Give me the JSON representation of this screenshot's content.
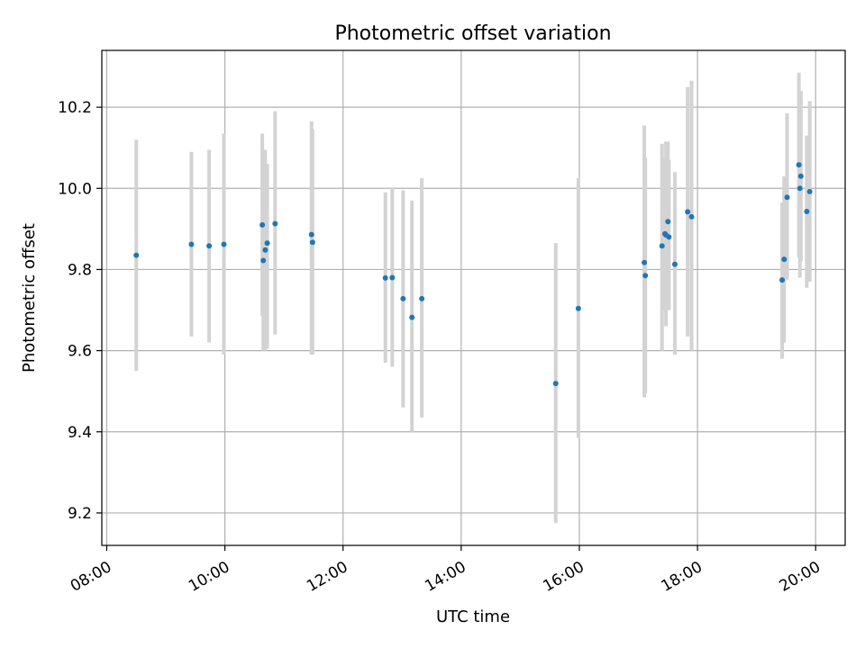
{
  "chart_data": {
    "type": "scatter",
    "title": "Photometric offset variation",
    "xlabel": "UTC time",
    "ylabel": "Photometric offset",
    "xlim": [
      "07:55",
      "20:30"
    ],
    "ylim": [
      9.12,
      10.34
    ],
    "x_ticks": [
      "08:00",
      "10:00",
      "12:00",
      "14:00",
      "16:00",
      "18:00",
      "20:00"
    ],
    "y_ticks": [
      9.2,
      9.4,
      9.6,
      9.8,
      10.0,
      10.2
    ],
    "grid": true,
    "legend": "none",
    "point_color": "#1f77b4",
    "errorbar_color": "#d3d3d3",
    "points": [
      {
        "x": "08:30",
        "y": 9.835,
        "low": 9.55,
        "high": 10.12
      },
      {
        "x": "09:26",
        "y": 9.862,
        "low": 9.635,
        "high": 10.09
      },
      {
        "x": "09:44",
        "y": 9.858,
        "low": 9.62,
        "high": 10.095
      },
      {
        "x": "09:59",
        "y": 9.862,
        "low": 9.59,
        "high": 10.135
      },
      {
        "x": "10:38",
        "y": 9.91,
        "low": 9.685,
        "high": 10.135
      },
      {
        "x": "10:39",
        "y": 9.822,
        "low": 9.6,
        "high": 10.045
      },
      {
        "x": "10:41",
        "y": 9.848,
        "low": 9.6,
        "high": 10.095
      },
      {
        "x": "10:43",
        "y": 9.865,
        "low": 9.605,
        "high": 10.06
      },
      {
        "x": "10:51",
        "y": 9.913,
        "low": 9.64,
        "high": 10.19
      },
      {
        "x": "11:28",
        "y": 9.886,
        "low": 9.59,
        "high": 10.165
      },
      {
        "x": "11:29",
        "y": 9.867,
        "low": 9.59,
        "high": 10.145
      },
      {
        "x": "12:43",
        "y": 9.779,
        "low": 9.57,
        "high": 9.99
      },
      {
        "x": "12:50",
        "y": 9.78,
        "low": 9.56,
        "high": 10.0
      },
      {
        "x": "13:01",
        "y": 9.728,
        "low": 9.46,
        "high": 9.995
      },
      {
        "x": "13:10",
        "y": 9.682,
        "low": 9.4,
        "high": 9.97
      },
      {
        "x": "13:20",
        "y": 9.728,
        "low": 9.435,
        "high": 10.025
      },
      {
        "x": "15:36",
        "y": 9.519,
        "low": 9.175,
        "high": 9.865
      },
      {
        "x": "15:59",
        "y": 9.704,
        "low": 9.385,
        "high": 10.025
      },
      {
        "x": "17:06",
        "y": 9.817,
        "low": 9.485,
        "high": 10.155
      },
      {
        "x": "17:07",
        "y": 9.785,
        "low": 9.495,
        "high": 10.075
      },
      {
        "x": "17:24",
        "y": 9.858,
        "low": 9.6,
        "high": 10.11
      },
      {
        "x": "17:27",
        "y": 9.888,
        "low": 9.7,
        "high": 10.075
      },
      {
        "x": "17:28",
        "y": 9.885,
        "low": 9.66,
        "high": 10.115
      },
      {
        "x": "17:30",
        "y": 9.918,
        "low": 9.72,
        "high": 10.115
      },
      {
        "x": "17:31",
        "y": 9.88,
        "low": 9.7,
        "high": 10.07
      },
      {
        "x": "17:37",
        "y": 9.813,
        "low": 9.59,
        "high": 10.04
      },
      {
        "x": "17:50",
        "y": 9.942,
        "low": 9.635,
        "high": 10.25
      },
      {
        "x": "17:54",
        "y": 9.93,
        "low": 9.6,
        "high": 10.265
      },
      {
        "x": "19:26",
        "y": 9.774,
        "low": 9.58,
        "high": 9.965
      },
      {
        "x": "19:28",
        "y": 9.825,
        "low": 9.62,
        "high": 10.03
      },
      {
        "x": "19:31",
        "y": 9.978,
        "low": 9.775,
        "high": 10.185
      },
      {
        "x": "19:43",
        "y": 10.058,
        "low": 9.83,
        "high": 10.285
      },
      {
        "x": "19:44",
        "y": 10.0,
        "low": 9.78,
        "high": 10.22
      },
      {
        "x": "19:45",
        "y": 10.03,
        "low": 9.82,
        "high": 10.24
      },
      {
        "x": "19:51",
        "y": 9.943,
        "low": 9.755,
        "high": 10.13
      },
      {
        "x": "19:54",
        "y": 9.992,
        "low": 9.77,
        "high": 10.215
      }
    ]
  }
}
